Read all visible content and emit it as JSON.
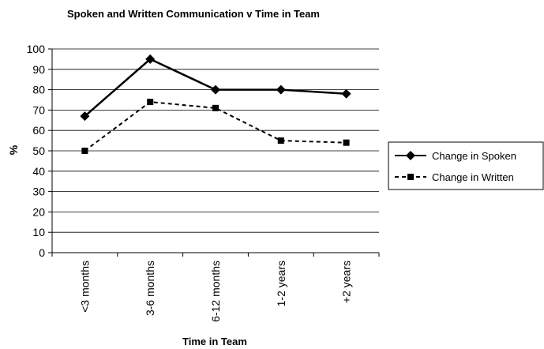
{
  "chart_data": {
    "type": "line",
    "title": "Spoken and Written Communication v Time in Team",
    "x_label": "Time in Team",
    "y_label": "%",
    "categories": [
      "<3 months",
      "3-6 months",
      "6-12 months",
      "1-2 years",
      "+2 years"
    ],
    "series": [
      {
        "name": "Change in Spoken",
        "color": "#000000",
        "line_style": "solid",
        "marker": "diamond",
        "values": [
          67,
          95,
          80,
          80,
          78
        ]
      },
      {
        "name": "Change in Written",
        "color": "#000000",
        "line_style": "dashed",
        "marker": "square",
        "values": [
          50,
          74,
          71,
          55,
          54
        ]
      }
    ],
    "ylim": [
      0,
      100
    ],
    "yticks": [
      0,
      10,
      20,
      30,
      40,
      50,
      60,
      70,
      80,
      90,
      100
    ],
    "grid": true,
    "legend": "right"
  }
}
